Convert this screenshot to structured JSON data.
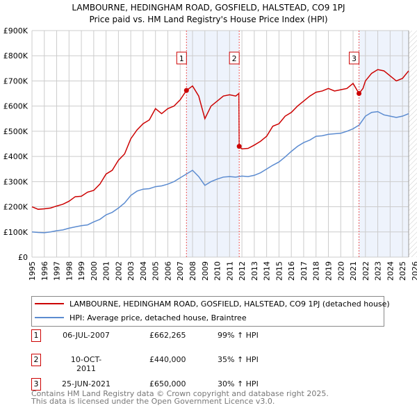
{
  "chart_data": {
    "type": "line",
    "title": "LAMBOURNE, HEDINGHAM ROAD, GOSFIELD, HALSTEAD, CO9 1PJ",
    "subtitle": "Price paid vs. HM Land Registry's House Price Index (HPI)",
    "ylim": [
      0,
      900000
    ],
    "xlim": [
      1995,
      2026
    ],
    "yticks": [
      "£0",
      "£100K",
      "£200K",
      "£300K",
      "£400K",
      "£500K",
      "£600K",
      "£700K",
      "£800K",
      "£900K"
    ],
    "xticks": [
      "1995",
      "1996",
      "1997",
      "1998",
      "1999",
      "2000",
      "2001",
      "2002",
      "2003",
      "2004",
      "2005",
      "2006",
      "2007",
      "2008",
      "2009",
      "2010",
      "2011",
      "2012",
      "2013",
      "2014",
      "2015",
      "2016",
      "2017",
      "2018",
      "2019",
      "2020",
      "2021",
      "2022",
      "2023",
      "2024",
      "2025",
      "2026"
    ],
    "series": [
      {
        "name": "LAMBOURNE, HEDINGHAM ROAD, GOSFIELD, HALSTEAD, CO9 1PJ (detached house)",
        "color": "#cc0000",
        "x": [
          1995,
          1995.5,
          1996,
          1996.5,
          1997,
          1997.5,
          1998,
          1998.5,
          1999,
          1999.5,
          2000,
          2000.5,
          2001,
          2001.5,
          2002,
          2002.5,
          2003,
          2003.5,
          2004,
          2004.5,
          2005,
          2005.5,
          2006,
          2006.5,
          2007,
          2007.51,
          2008,
          2008.5,
          2009,
          2009.5,
          2010,
          2010.5,
          2011,
          2011.5,
          2011.75,
          2011.78,
          2012,
          2012.5,
          2013,
          2013.5,
          2014,
          2014.5,
          2015,
          2015.5,
          2016,
          2016.5,
          2017,
          2017.5,
          2018,
          2018.5,
          2019,
          2019.5,
          2020,
          2020.5,
          2021,
          2021.48,
          2021.8,
          2022,
          2022.5,
          2023,
          2023.5,
          2024,
          2024.5,
          2025,
          2025.5
        ],
        "y": [
          200000,
          190000,
          192000,
          195000,
          203000,
          210000,
          222000,
          240000,
          242000,
          258000,
          265000,
          290000,
          330000,
          345000,
          385000,
          410000,
          470000,
          505000,
          530000,
          545000,
          590000,
          570000,
          590000,
          600000,
          625000,
          662265,
          680000,
          640000,
          550000,
          600000,
          620000,
          640000,
          645000,
          640000,
          650000,
          440000,
          430000,
          432000,
          445000,
          460000,
          480000,
          520000,
          530000,
          560000,
          575000,
          600000,
          620000,
          640000,
          655000,
          660000,
          670000,
          660000,
          665000,
          670000,
          690000,
          650000,
          670000,
          700000,
          730000,
          745000,
          740000,
          720000,
          700000,
          710000,
          740000
        ]
      },
      {
        "name": "HPI: Average price, detached house, Braintree",
        "color": "#5b8bd0",
        "x": [
          1995,
          1995.5,
          1996,
          1996.5,
          1997,
          1997.5,
          1998,
          1998.5,
          1999,
          1999.5,
          2000,
          2000.5,
          2001,
          2001.5,
          2002,
          2002.5,
          2003,
          2003.5,
          2004,
          2004.5,
          2005,
          2005.5,
          2006,
          2006.5,
          2007,
          2007.5,
          2008,
          2008.5,
          2009,
          2009.5,
          2010,
          2010.5,
          2011,
          2011.5,
          2012,
          2012.5,
          2013,
          2013.5,
          2014,
          2014.5,
          2015,
          2015.5,
          2016,
          2016.5,
          2017,
          2017.5,
          2018,
          2018.5,
          2019,
          2019.5,
          2020,
          2020.5,
          2021,
          2021.5,
          2022,
          2022.5,
          2023,
          2023.5,
          2024,
          2024.5,
          2025,
          2025.5
        ],
        "y": [
          100000,
          98000,
          97000,
          100000,
          105000,
          108000,
          115000,
          120000,
          125000,
          128000,
          140000,
          150000,
          168000,
          178000,
          195000,
          215000,
          245000,
          262000,
          270000,
          272000,
          280000,
          283000,
          290000,
          300000,
          315000,
          330000,
          345000,
          320000,
          285000,
          300000,
          310000,
          318000,
          320000,
          318000,
          322000,
          320000,
          325000,
          335000,
          350000,
          365000,
          378000,
          398000,
          420000,
          440000,
          455000,
          465000,
          480000,
          482000,
          488000,
          490000,
          492000,
          500000,
          510000,
          525000,
          560000,
          575000,
          578000,
          565000,
          560000,
          555000,
          560000,
          570000
        ]
      }
    ],
    "sales": [
      {
        "label": "1",
        "year": 2007.51,
        "price": 662265,
        "date": "06-JUL-2007",
        "price_text": "£662,265",
        "hpi": "99% ↑ HPI"
      },
      {
        "label": "2",
        "year": 2011.78,
        "price": 440000,
        "date": "10-OCT-2011",
        "price_text": "£440,000",
        "hpi": "35% ↑ HPI"
      },
      {
        "label": "3",
        "year": 2021.48,
        "price": 650000,
        "date": "25-JUN-2021",
        "price_text": "£650,000",
        "hpi": "30% ↑ HPI"
      }
    ],
    "shaded_ranges": [
      [
        2007.51,
        2011.78
      ],
      [
        2021.48,
        2025.5
      ]
    ],
    "grid": true,
    "legend_position": "below"
  },
  "footer": [
    "Contains HM Land Registry data © Crown copyright and database right 2025.",
    "This data is licensed under the Open Government Licence v3.0."
  ]
}
